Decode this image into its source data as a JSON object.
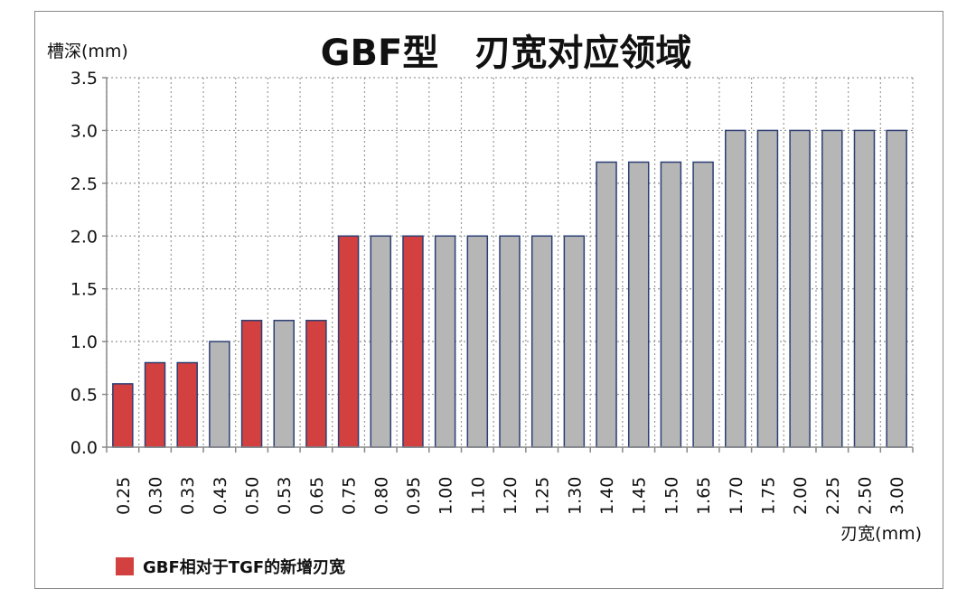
{
  "chart_data": {
    "type": "bar",
    "title": "GBF型　刃宽对应领域",
    "ylabel": "槽深(mm)",
    "xlabel": "刃宽(mm)",
    "ylim": [
      0,
      3.5
    ],
    "yticks": [
      "0.0",
      "0.5",
      "1.0",
      "1.5",
      "2.0",
      "2.5",
      "3.0",
      "3.5"
    ],
    "ytick_values": [
      0,
      0.5,
      1.0,
      1.5,
      2.0,
      2.5,
      3.0,
      3.5
    ],
    "categories": [
      "0.25",
      "0.30",
      "0.33",
      "0.43",
      "0.50",
      "0.53",
      "0.65",
      "0.75",
      "0.80",
      "0.95",
      "1.00",
      "1.10",
      "1.20",
      "1.25",
      "1.30",
      "1.40",
      "1.45",
      "1.50",
      "1.65",
      "1.70",
      "1.75",
      "2.00",
      "2.25",
      "2.50",
      "3.00"
    ],
    "values": [
      0.6,
      0.8,
      0.8,
      1.0,
      1.2,
      1.2,
      1.2,
      2.0,
      2.0,
      2.0,
      2.0,
      2.0,
      2.0,
      2.0,
      2.0,
      2.7,
      2.7,
      2.7,
      2.7,
      3.0,
      3.0,
      3.0,
      3.0,
      3.0,
      3.0
    ],
    "highlighted": [
      true,
      true,
      true,
      false,
      true,
      false,
      true,
      true,
      false,
      true,
      false,
      false,
      false,
      false,
      false,
      false,
      false,
      false,
      false,
      false,
      false,
      false,
      false,
      false,
      false
    ],
    "grid": true,
    "legend": {
      "placement": "bottom-left",
      "label": "GBF相对于TGF的新增刃宽"
    },
    "colors": {
      "highlight": "#d2413f",
      "normal": "#b6b6b6",
      "bar_stroke": "#2c3e73",
      "grid": "#9a9a9a",
      "axis": "#888888"
    }
  }
}
